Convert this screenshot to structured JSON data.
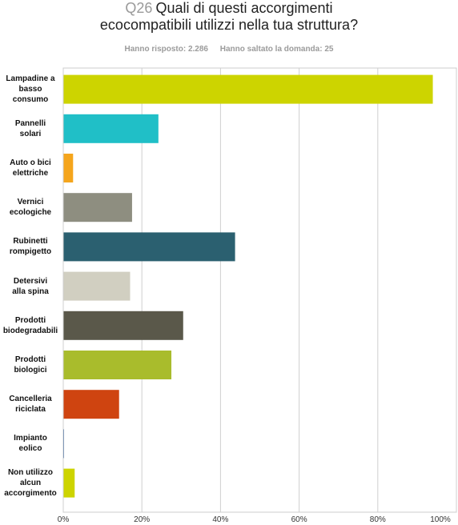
{
  "header": {
    "question_number": "Q26",
    "title_line1": "Quali di questi accorgimenti",
    "title_line2": "ecocompatibili utilizzi nella tua struttura?",
    "answered": "Hanno risposto: 2.286",
    "skipped": "Hanno saltato la domanda: 25"
  },
  "chart_data": {
    "type": "bar",
    "orientation": "horizontal",
    "categories": [
      "Lampadine a basso consumo",
      "Pannelli solari",
      "Auto o bici elettriche",
      "Vernici ecologiche",
      "Rubinetti rompigetto",
      "Detersivi alla spina",
      "Prodotti biodegradabili",
      "Prodotti biologici",
      "Cancelleria riciclata",
      "Impianto eolico",
      "Non utilizzo alcun accorgimento"
    ],
    "category_label_lines": [
      [
        "Lampadine a",
        "basso",
        "consumo"
      ],
      [
        "Pannelli",
        "solari"
      ],
      [
        "Auto o bici",
        "elettriche"
      ],
      [
        "Vernici",
        "ecologiche"
      ],
      [
        "Rubinetti",
        "rompigetto"
      ],
      [
        "Detersivi",
        "alla spina"
      ],
      [
        "Prodotti",
        "biodegradabili"
      ],
      [
        "Prodotti",
        "biologici"
      ],
      [
        "Cancelleria",
        "riciclata"
      ],
      [
        "Impianto",
        "eolico"
      ],
      [
        "Non utilizzo",
        "alcun",
        "accorgimento"
      ]
    ],
    "values": [
      93.9,
      24.1,
      2.4,
      17.4,
      43.6,
      16.9,
      30.4,
      27.4,
      14.1,
      0.1,
      2.8
    ],
    "colors": [
      "#cdd400",
      "#20bfc7",
      "#f5a51c",
      "#8e8e80",
      "#2b6070",
      "#d1cfc1",
      "#5a584a",
      "#a9bc2c",
      "#cf4410",
      "#2f5fa0",
      "#cdd400"
    ],
    "xlim": [
      0,
      100
    ],
    "ticks": [
      "0%",
      "20%",
      "40%",
      "60%",
      "80%",
      "100%"
    ],
    "grid": true
  }
}
